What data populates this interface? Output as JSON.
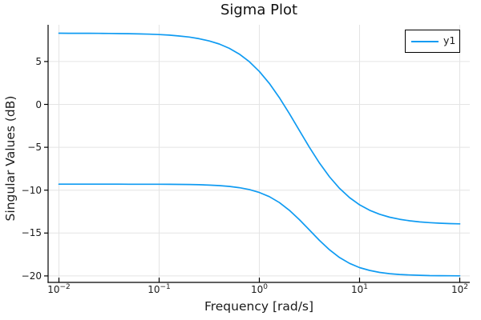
{
  "figure": {
    "title": "Sigma Plot",
    "background": "#ffffff"
  },
  "axes": {
    "x_label": "Frequency [rad/s]",
    "y_label": "Singular Values (dB)",
    "x_scale": "log10",
    "x_tick_base": "10",
    "x_tick_exponents": [
      -2,
      -1,
      0,
      1,
      2
    ],
    "y_ticks": [
      5,
      0,
      -5,
      -10,
      -15,
      -20
    ],
    "x_range_log10": [
      -2.1,
      2.1
    ],
    "y_range_db": [
      -20.8,
      9.3
    ],
    "grid": true
  },
  "legend": {
    "position": "top-right",
    "entries": [
      {
        "label": "y1",
        "color": "#0f9bf2"
      }
    ]
  },
  "colors": {
    "series": "#0f9bf2",
    "grid": "#e4e4e4",
    "axis": "#000000",
    "text": "#1b1b1b"
  },
  "chart_data": {
    "type": "line",
    "title": "Sigma Plot",
    "xlabel": "Frequency [rad/s]",
    "ylabel": "Singular Values (dB)",
    "x_axis": "log10(frequency rad/s)",
    "x_log10_w": [
      -2.0,
      -1.9,
      -1.8,
      -1.7,
      -1.6,
      -1.5,
      -1.4,
      -1.3,
      -1.2,
      -1.1,
      -1.0,
      -0.9,
      -0.8,
      -0.7,
      -0.6,
      -0.5,
      -0.4,
      -0.3,
      -0.2,
      -0.1,
      0.0,
      0.1,
      0.2,
      0.3,
      0.4,
      0.5,
      0.6,
      0.7,
      0.8,
      0.9,
      1.0,
      1.1,
      1.2,
      1.3,
      1.4,
      1.5,
      1.6,
      1.7,
      1.8,
      1.9,
      2.0
    ],
    "series": [
      {
        "name": "sigma-max (y1)",
        "values_db": [
          8.3,
          8.29,
          8.29,
          8.29,
          8.28,
          8.27,
          8.26,
          8.25,
          8.22,
          8.19,
          8.14,
          8.08,
          7.98,
          7.85,
          7.66,
          7.4,
          7.04,
          6.54,
          5.87,
          4.98,
          3.84,
          2.44,
          0.78,
          -1.08,
          -3.05,
          -5.01,
          -6.84,
          -8.44,
          -9.79,
          -10.87,
          -11.71,
          -12.34,
          -12.81,
          -13.15,
          -13.4,
          -13.57,
          -13.7,
          -13.79,
          -13.85,
          -13.9,
          -13.93
        ]
      },
      {
        "name": "sigma-min (y1)",
        "values_db": [
          -9.3,
          -9.3,
          -9.3,
          -9.3,
          -9.3,
          -9.3,
          -9.3,
          -9.31,
          -9.31,
          -9.31,
          -9.31,
          -9.32,
          -9.33,
          -9.34,
          -9.37,
          -9.41,
          -9.47,
          -9.56,
          -9.71,
          -9.93,
          -10.27,
          -10.76,
          -11.45,
          -12.35,
          -13.44,
          -14.65,
          -15.86,
          -16.95,
          -17.85,
          -18.54,
          -19.03,
          -19.36,
          -19.59,
          -19.74,
          -19.83,
          -19.89,
          -19.93,
          -19.96,
          -19.97,
          -19.98,
          -19.99
        ]
      }
    ],
    "xlim_log10": [
      -2,
      2
    ],
    "ylim_db": [
      -20.8,
      9.3
    ],
    "grid": true,
    "legend_position": "top-right"
  }
}
